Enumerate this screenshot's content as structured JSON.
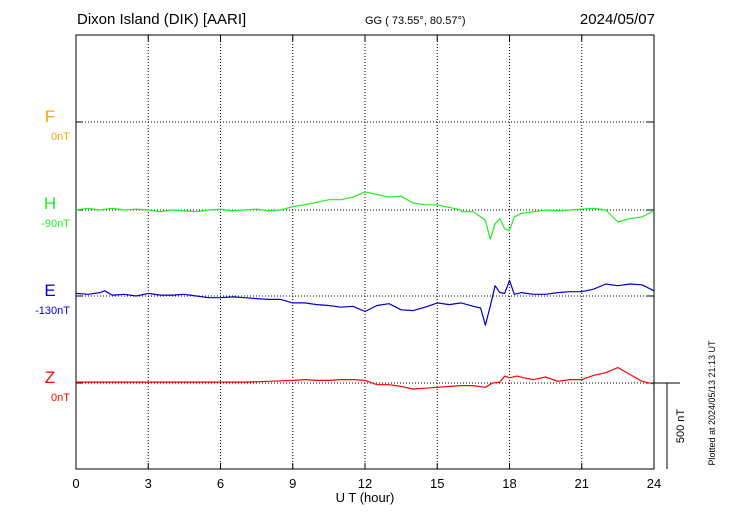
{
  "header": {
    "station": "Dixon Island (DIK)  [AARI]",
    "coords": "GG ( 73.55°,  80.57°)",
    "date": "2024/05/07"
  },
  "plotted_note": "Plotted at 2024/05/13 21:13 UT",
  "scale_label": "500 nT",
  "chart_data": {
    "type": "line",
    "title": "Dixon Island (DIK)  [AARI]",
    "xlabel": "U T (hour)",
    "x_ticks": [
      "0",
      "3",
      "6",
      "9",
      "12",
      "15",
      "18",
      "21",
      "24"
    ],
    "xlim": [
      0,
      24
    ],
    "grid": true,
    "scale_bar_nT": 500,
    "series": [
      {
        "name": "F",
        "baseline_label": "0nT",
        "color": "#f2a900",
        "x": [],
        "values": []
      },
      {
        "name": "H",
        "baseline_label": "-90nT",
        "color": "#22ee22",
        "x": [
          0,
          0.5,
          1,
          1.5,
          2,
          2.5,
          3,
          3.5,
          4,
          4.5,
          5,
          5.5,
          6,
          6.5,
          7,
          7.5,
          8,
          8.5,
          9,
          9.5,
          10,
          10.5,
          11,
          11.5,
          12,
          12.5,
          13,
          13.5,
          14,
          14.5,
          15,
          15.5,
          16,
          16,
          16.5,
          16.8,
          17,
          17.2,
          17.4,
          17.6,
          17.8,
          18,
          18.2,
          18.5,
          19,
          19.5,
          20,
          20.5,
          21,
          21.5,
          22,
          22.5,
          23,
          23.5,
          24
        ],
        "values": [
          0,
          10,
          0,
          10,
          0,
          5,
          0,
          -10,
          0,
          -5,
          -10,
          0,
          5,
          -5,
          0,
          5,
          -5,
          0,
          20,
          30,
          45,
          60,
          60,
          75,
          105,
          90,
          75,
          80,
          40,
          30,
          30,
          15,
          0,
          -10,
          -10,
          -40,
          -60,
          -170,
          -80,
          -50,
          -110,
          -120,
          -40,
          -20,
          -10,
          0,
          -5,
          0,
          5,
          10,
          0,
          -70,
          -50,
          -40,
          -5
        ]
      },
      {
        "name": "E",
        "baseline_label": "-130nT",
        "color": "#0000cc",
        "x": [
          0,
          0.5,
          1,
          1.2,
          1.5,
          2,
          2.5,
          3,
          3.5,
          4,
          4.5,
          5,
          5.5,
          6,
          6.5,
          7,
          7.5,
          8,
          8.5,
          9,
          9.5,
          10,
          10.5,
          11,
          11.5,
          12,
          12.5,
          13,
          13.5,
          14,
          14.5,
          15,
          15.5,
          16,
          16.5,
          16.8,
          17,
          17.2,
          17.4,
          17.6,
          17.8,
          18,
          18.2,
          18.5,
          19,
          19.5,
          20,
          20.5,
          21,
          21.5,
          22,
          22.5,
          23,
          23.5,
          24
        ],
        "values": [
          15,
          10,
          20,
          30,
          5,
          10,
          0,
          15,
          5,
          5,
          10,
          0,
          -10,
          -10,
          -5,
          -10,
          -15,
          -20,
          -20,
          -40,
          -40,
          -50,
          -55,
          -65,
          -60,
          -90,
          -55,
          -45,
          -80,
          -85,
          -65,
          -40,
          -50,
          -40,
          -60,
          -70,
          -170,
          -60,
          60,
          20,
          15,
          90,
          10,
          20,
          10,
          10,
          20,
          25,
          25,
          40,
          70,
          60,
          70,
          65,
          30
        ]
      },
      {
        "name": "Z",
        "baseline_label": "0nT",
        "color": "#ff0000",
        "x": [
          0,
          1,
          2,
          3,
          4,
          5,
          6,
          7,
          8,
          9,
          9.5,
          10,
          10.5,
          11,
          11.5,
          12,
          12.5,
          13,
          13.5,
          14,
          14.5,
          15,
          15.5,
          16,
          16.5,
          17,
          17.3,
          17.6,
          17.8,
          18,
          18.3,
          18.6,
          19,
          19.5,
          20,
          20.5,
          21,
          21.5,
          22,
          22.5,
          23,
          23.5,
          24
        ],
        "values": [
          5,
          5,
          5,
          5,
          5,
          5,
          5,
          5,
          10,
          15,
          20,
          15,
          15,
          20,
          20,
          15,
          -10,
          -10,
          -20,
          -35,
          -30,
          -25,
          -20,
          -15,
          -15,
          -25,
          0,
          5,
          40,
          30,
          40,
          30,
          20,
          35,
          10,
          20,
          20,
          45,
          60,
          90,
          50,
          10,
          -5
        ]
      }
    ]
  }
}
